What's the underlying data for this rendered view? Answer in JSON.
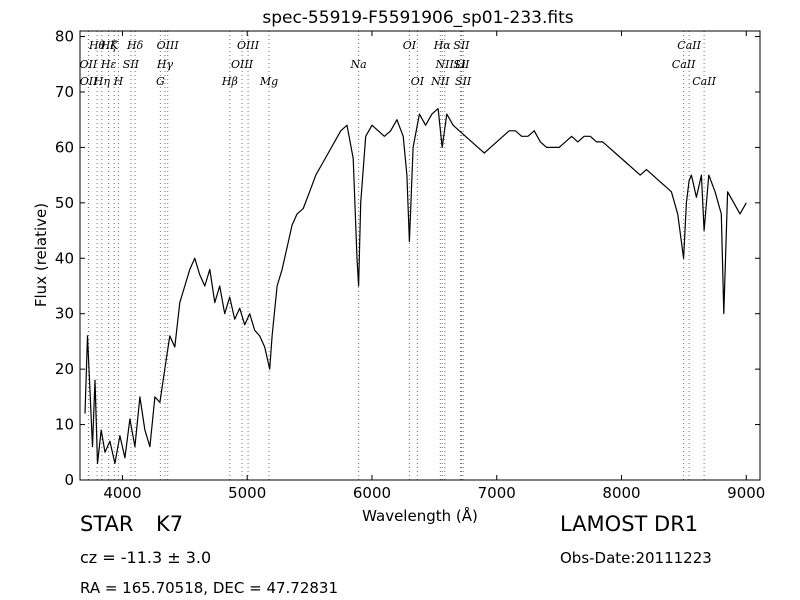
{
  "chart_data": {
    "type": "line",
    "title": "spec-55919-F5591906_sp01-233.fits",
    "xlabel": "Wavelength (Å)",
    "ylabel": "Flux (relative)",
    "xlim": [
      3660,
      9110
    ],
    "ylim": [
      0,
      81
    ],
    "xticks": [
      4000,
      5000,
      6000,
      7000,
      8000,
      9000
    ],
    "yticks": [
      0,
      10,
      20,
      30,
      40,
      50,
      60,
      70,
      80
    ],
    "grid": false,
    "line_color": "#000000",
    "marker_color": "#2ca02c",
    "series": [
      {
        "x": [
          3700,
          3720,
          3740,
          3760,
          3780,
          3800,
          3830,
          3860,
          3900,
          3940,
          3980,
          4020,
          4060,
          4100,
          4140,
          4180,
          4220,
          4260,
          4300,
          4340,
          4380,
          4420,
          4460,
          4500,
          4540,
          4580,
          4620,
          4660,
          4700,
          4740,
          4780,
          4820,
          4860,
          4900,
          4940,
          4980,
          5020,
          5060,
          5100,
          5140,
          5180,
          5200,
          5240,
          5280,
          5320,
          5360,
          5400,
          5450,
          5500,
          5550,
          5600,
          5650,
          5700,
          5750,
          5800,
          5850,
          5880,
          5893,
          5910,
          5950,
          6000,
          6050,
          6100,
          6150,
          6200,
          6250,
          6280,
          6300,
          6330,
          6380,
          6430,
          6480,
          6530,
          6563,
          6600,
          6650,
          6700,
          6750,
          6800,
          6850,
          6900,
          6950,
          7000,
          7050,
          7100,
          7150,
          7200,
          7250,
          7300,
          7350,
          7400,
          7450,
          7500,
          7550,
          7600,
          7650,
          7700,
          7750,
          7800,
          7850,
          7900,
          7950,
          8000,
          8050,
          8100,
          8150,
          8200,
          8250,
          8300,
          8350,
          8400,
          8450,
          8498,
          8520,
          8542,
          8560,
          8600,
          8640,
          8662,
          8700,
          8750,
          8800,
          8820,
          8850,
          8900,
          8950,
          9000
        ],
        "y": [
          12,
          26,
          16,
          6,
          18,
          3,
          9,
          5,
          7,
          3,
          8,
          4,
          11,
          6,
          15,
          9,
          6,
          15,
          14,
          20,
          26,
          24,
          32,
          35,
          38,
          40,
          37,
          35,
          38,
          32,
          35,
          30,
          33,
          29,
          31,
          28,
          30,
          27,
          26,
          24,
          20,
          26,
          35,
          38,
          42,
          46,
          48,
          49,
          52,
          55,
          57,
          59,
          61,
          63,
          64,
          58,
          40,
          35,
          50,
          62,
          64,
          63,
          62,
          63,
          65,
          62,
          55,
          43,
          60,
          66,
          64,
          66,
          67,
          60,
          66,
          64,
          63,
          62,
          61,
          60,
          59,
          60,
          61,
          62,
          63,
          63,
          62,
          62,
          63,
          61,
          60,
          60,
          60,
          61,
          62,
          61,
          62,
          62,
          61,
          61,
          60,
          59,
          58,
          57,
          56,
          55,
          56,
          55,
          54,
          53,
          52,
          48,
          40,
          50,
          54,
          55,
          51,
          55,
          45,
          55,
          52,
          48,
          30,
          52,
          50,
          48,
          50
        ]
      }
    ],
    "spectral_lines": [
      {
        "label": "Hθ",
        "x": 3797,
        "row": 1
      },
      {
        "label": "K",
        "x": 3934,
        "row": 1
      },
      {
        "label": "Hδ",
        "x": 4102,
        "row": 1
      },
      {
        "label": "OIII",
        "x": 4363,
        "row": 1
      },
      {
        "label": "OIII",
        "x": 5007,
        "row": 1
      },
      {
        "label": "OI",
        "x": 6300,
        "row": 1
      },
      {
        "label": "Hα",
        "x": 6563,
        "row": 1
      },
      {
        "label": "SII",
        "x": 6717,
        "row": 1
      },
      {
        "label": "CaII",
        "x": 8542,
        "row": 1
      },
      {
        "label": "OII",
        "x": 3727,
        "row": 2
      },
      {
        "label": "Hε",
        "x": 3889,
        "row": 2
      },
      {
        "label": "Hγ",
        "x": 4341,
        "row": 2
      },
      {
        "label": "OIII",
        "x": 4959,
        "row": 2
      },
      {
        "label": "Na",
        "x": 5893,
        "row": 2
      },
      {
        "label": "NII",
        "x": 6583,
        "row": 2
      },
      {
        "label": "Li",
        "x": 6708,
        "row": 2
      },
      {
        "label": "CaII",
        "x": 8498,
        "row": 2
      },
      {
        "label": "OII",
        "x": 3729,
        "row": 3
      },
      {
        "label": "Hη",
        "x": 3835,
        "row": 3
      },
      {
        "label": "H",
        "x": 3968,
        "row": 3
      },
      {
        "label": "G",
        "x": 4304,
        "row": 3
      },
      {
        "label": "Hβ",
        "x": 4861,
        "row": 3
      },
      {
        "label": "Mg",
        "x": 5175,
        "row": 3
      },
      {
        "label": "OI",
        "x": 6364,
        "row": 3
      },
      {
        "label": "NII",
        "x": 6548,
        "row": 3
      },
      {
        "label": "SII",
        "x": 6731,
        "row": 3
      },
      {
        "label": "CaII",
        "x": 8662,
        "row": 3
      },
      {
        "label": "Hζ",
        "x": 3889,
        "row": 1
      },
      {
        "label": "SII",
        "x": 4068,
        "row": 2
      },
      {
        "label": "SII",
        "x": 6717,
        "row": 2
      }
    ]
  },
  "info": {
    "object_class": "STAR",
    "subclass": "K7",
    "survey": "LAMOST DR1",
    "cz": "cz = -11.3 ± 3.0",
    "obs_date": "Obs-Date:20111223",
    "radec": "RA = 165.70518, DEC = 47.72831"
  }
}
